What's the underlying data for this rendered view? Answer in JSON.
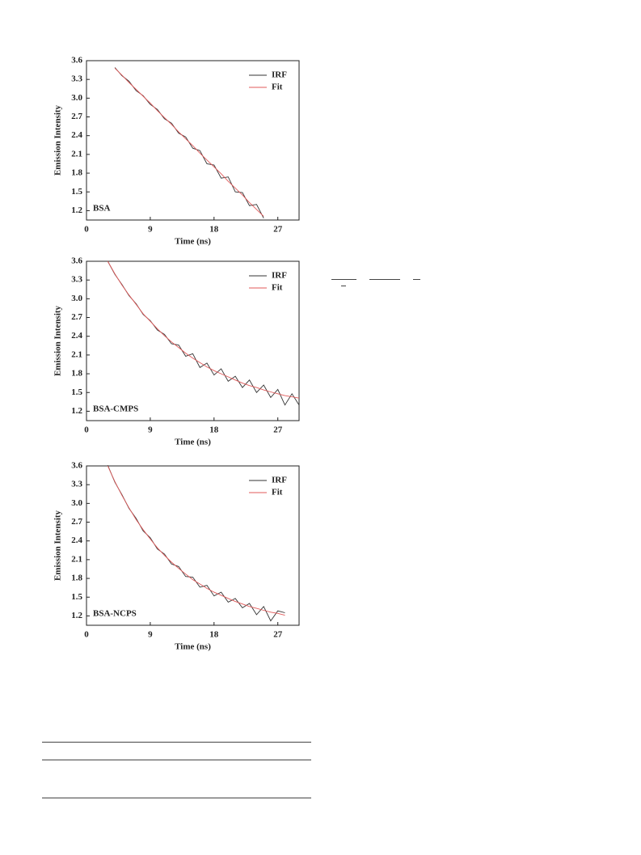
{
  "chart_data": [
    {
      "type": "line",
      "annotation": "BSA",
      "xlabel": "Time (ns)",
      "ylabel": "Emission Intensity",
      "xlim": [
        0,
        30
      ],
      "ylim": [
        1.05,
        3.6
      ],
      "xticks": [
        0,
        9,
        18,
        27
      ],
      "yticks": [
        1.2,
        1.5,
        1.8,
        2.1,
        2.4,
        2.7,
        {
          "value": 3,
          "label": "3.0"
        },
        3.3,
        3.6
      ],
      "x": [
        4,
        5,
        6,
        7,
        8,
        9,
        10,
        11,
        12,
        13,
        14,
        15,
        16,
        17,
        18,
        19,
        20,
        21,
        22,
        23,
        24,
        25
      ],
      "series": [
        {
          "name": "IRF",
          "color": "#333333",
          "values": [
            3.49,
            3.36,
            3.27,
            3.12,
            3.04,
            2.9,
            2.82,
            2.67,
            2.6,
            2.44,
            2.38,
            2.2,
            2.16,
            1.95,
            1.93,
            1.72,
            1.74,
            1.5,
            1.49,
            1.28,
            1.3,
            1.08
          ]
        },
        {
          "name": "Fit",
          "color": "#e05a5a",
          "values": [
            3.48,
            3.37,
            3.25,
            3.14,
            3.03,
            2.92,
            2.8,
            2.69,
            2.58,
            2.46,
            2.35,
            2.24,
            2.12,
            2.01,
            1.9,
            1.79,
            1.67,
            1.56,
            1.45,
            1.33,
            1.22,
            1.11
          ]
        }
      ]
    },
    {
      "type": "line",
      "annotation": "BSA-CMPS",
      "xlabel": "Time (ns)",
      "ylabel": "Emission Intensity",
      "xlim": [
        0,
        30
      ],
      "ylim": [
        1.05,
        3.6
      ],
      "xticks": [
        0,
        9,
        18,
        27
      ],
      "yticks": [
        1.2,
        1.5,
        1.8,
        2.1,
        2.4,
        2.7,
        {
          "value": 3,
          "label": "3.0"
        },
        3.3,
        3.6
      ],
      "x": [
        3,
        4,
        5,
        6,
        7,
        8,
        9,
        10,
        11,
        12,
        13,
        14,
        15,
        16,
        17,
        18,
        19,
        20,
        21,
        22,
        23,
        24,
        25,
        26,
        27,
        28,
        29,
        30
      ],
      "series": [
        {
          "name": "IRF",
          "color": "#333333",
          "values": [
            3.6,
            3.39,
            3.23,
            3.05,
            2.92,
            2.75,
            2.65,
            2.5,
            2.43,
            2.28,
            2.26,
            2.08,
            2.12,
            1.9,
            1.97,
            1.78,
            1.88,
            1.68,
            1.76,
            1.58,
            1.7,
            1.5,
            1.62,
            1.42,
            1.55,
            1.3,
            1.48,
            1.3
          ]
        },
        {
          "name": "Fit",
          "color": "#e05a5a",
          "values": [
            3.6,
            3.4,
            3.22,
            3.06,
            2.91,
            2.76,
            2.64,
            2.52,
            2.41,
            2.31,
            2.22,
            2.13,
            2.05,
            1.98,
            1.91,
            1.85,
            1.8,
            1.75,
            1.7,
            1.65,
            1.61,
            1.58,
            1.54,
            1.51,
            1.48,
            1.45,
            1.43,
            1.41
          ]
        }
      ]
    },
    {
      "type": "line",
      "annotation": "BSA-NCPS",
      "xlabel": "Time (ns)",
      "ylabel": "Emission Intensity",
      "xlim": [
        0,
        30
      ],
      "ylim": [
        1.05,
        3.6
      ],
      "xticks": [
        0,
        9,
        18,
        27
      ],
      "yticks": [
        1.2,
        1.5,
        1.8,
        2.1,
        2.4,
        2.7,
        {
          "value": 3,
          "label": "3.0"
        },
        3.3,
        3.6
      ],
      "x": [
        3,
        4,
        5,
        6,
        7,
        8,
        9,
        10,
        11,
        12,
        13,
        14,
        15,
        16,
        17,
        18,
        19,
        20,
        21,
        22,
        23,
        24,
        25,
        26,
        27,
        28
      ],
      "series": [
        {
          "name": "IRF",
          "color": "#333333",
          "values": [
            3.61,
            3.34,
            3.14,
            2.92,
            2.76,
            2.56,
            2.45,
            2.27,
            2.19,
            2.03,
            1.99,
            1.83,
            1.82,
            1.66,
            1.69,
            1.52,
            1.58,
            1.42,
            1.48,
            1.33,
            1.4,
            1.22,
            1.35,
            1.12,
            1.28,
            1.25
          ]
        },
        {
          "name": "Fit",
          "color": "#e05a5a",
          "values": [
            3.6,
            3.35,
            3.13,
            2.93,
            2.74,
            2.58,
            2.43,
            2.29,
            2.17,
            2.06,
            1.96,
            1.87,
            1.78,
            1.71,
            1.64,
            1.58,
            1.53,
            1.48,
            1.43,
            1.39,
            1.35,
            1.32,
            1.29,
            1.26,
            1.24,
            1.21
          ]
        }
      ]
    }
  ]
}
